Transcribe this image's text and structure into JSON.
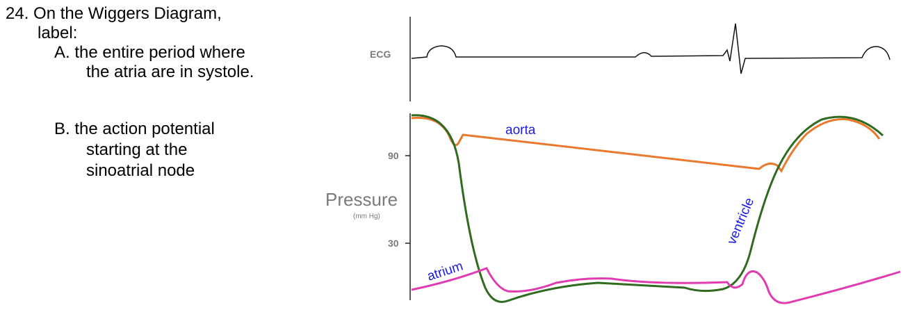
{
  "question": {
    "title": "24. On the Wiggers Diagram,",
    "label": "label:",
    "part_a_line1": "A. the entire period where",
    "part_a_line2": "the atria are in systole.",
    "part_b_line1": "B. the action potential",
    "part_b_line2": "starting at the",
    "part_b_line3": "sinoatrial node"
  },
  "diagram": {
    "ecg_label": "ECG",
    "pressure_label": "Pressure",
    "pressure_unit": "(mm Hg)",
    "tick_90": "90",
    "tick_30": "30",
    "aorta_label": "aorta",
    "ventricle_label": "ventricle",
    "atrium_label": "atrium",
    "colors": {
      "aorta": "#e8792f",
      "ventricle": "#2f6b1f",
      "atrium": "#e03bb0",
      "annotation": "#1a1aee",
      "axis_label": "#7a7a7a",
      "ecg_line": "#111111"
    }
  }
}
